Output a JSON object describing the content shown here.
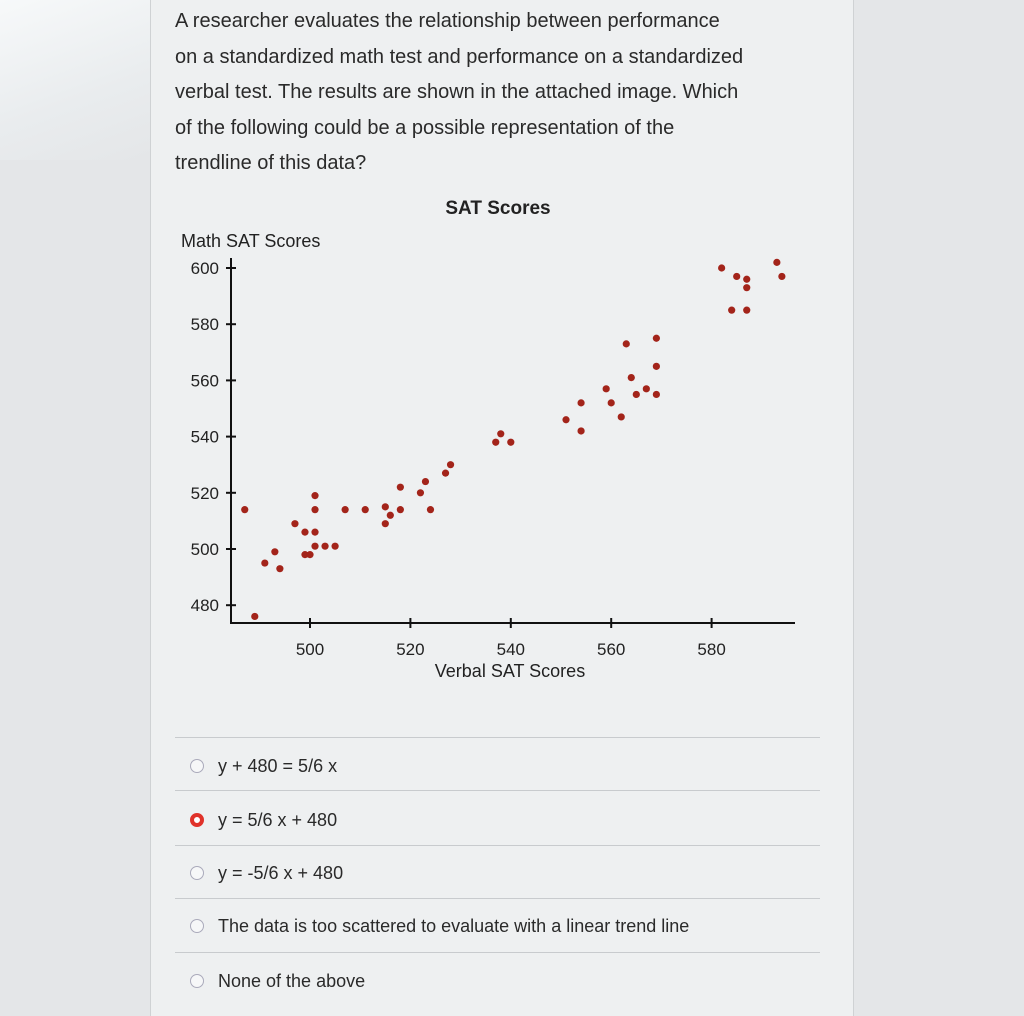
{
  "question": {
    "lines": [
      "A researcher evaluates the relationship between performance",
      "on a standardized math test and performance on a standardized",
      "verbal test. The results are shown in the attached image. Which",
      "of the following could be a possible representation of the",
      "trendline of this data?"
    ]
  },
  "options": [
    {
      "label": "y + 480 = 5/6 x",
      "selected": false
    },
    {
      "label": "y = 5/6 x + 480",
      "selected": true
    },
    {
      "label": "y = -5/6 x + 480",
      "selected": false
    },
    {
      "label": "The data is too scattered to evaluate with a linear trend line",
      "selected": false
    },
    {
      "label": "None of the above",
      "selected": false
    }
  ],
  "colors": {
    "point": "#a3241a",
    "selected_radio": "#e0322a"
  },
  "chart_data": {
    "type": "scatter",
    "title": "SAT Scores",
    "xlabel": "Verbal SAT Scores",
    "ylabel": "Math SAT Scores",
    "xticks": [
      500,
      520,
      540,
      560,
      580
    ],
    "yticks": [
      600,
      580,
      560,
      540,
      520,
      500,
      480
    ],
    "xlim": [
      484,
      601
    ],
    "ylim": [
      473,
      604
    ],
    "grid": false,
    "points": [
      [
        487,
        514
      ],
      [
        489,
        476
      ],
      [
        491,
        495
      ],
      [
        493,
        499
      ],
      [
        494,
        493
      ],
      [
        497,
        509
      ],
      [
        499,
        506
      ],
      [
        501,
        506
      ],
      [
        501,
        519
      ],
      [
        501,
        514
      ],
      [
        501,
        501
      ],
      [
        499,
        498
      ],
      [
        500,
        498
      ],
      [
        503,
        501
      ],
      [
        505,
        501
      ],
      [
        507,
        514
      ],
      [
        511,
        514
      ],
      [
        515,
        515
      ],
      [
        516,
        512
      ],
      [
        515,
        509
      ],
      [
        518,
        514
      ],
      [
        518,
        522
      ],
      [
        522,
        520
      ],
      [
        523,
        524
      ],
      [
        524,
        514
      ],
      [
        527,
        527
      ],
      [
        528,
        530
      ],
      [
        537,
        538
      ],
      [
        538,
        541
      ],
      [
        540,
        538
      ],
      [
        551,
        546
      ],
      [
        554,
        542
      ],
      [
        554,
        552
      ],
      [
        559,
        557
      ],
      [
        560,
        552
      ],
      [
        562,
        547
      ],
      [
        564,
        561
      ],
      [
        565,
        555
      ],
      [
        567,
        557
      ],
      [
        569,
        555
      ],
      [
        569,
        565
      ],
      [
        563,
        573
      ],
      [
        569,
        575
      ],
      [
        582,
        600
      ],
      [
        585,
        597
      ],
      [
        587,
        596
      ],
      [
        587,
        593
      ],
      [
        584,
        585
      ],
      [
        587,
        585
      ],
      [
        593,
        602
      ],
      [
        594,
        597
      ]
    ]
  }
}
